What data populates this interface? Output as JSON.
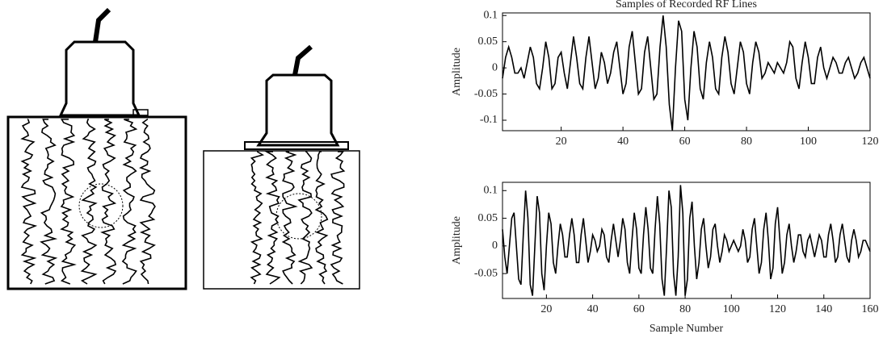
{
  "chart_data": [
    {
      "type": "line",
      "title": "Samples of Recorded RF Lines",
      "y_label": "Amplitude",
      "color": "#000000",
      "xlim": [
        1,
        120
      ],
      "xticks": [
        20,
        40,
        60,
        80,
        100,
        120
      ],
      "ylim": [
        -0.12,
        0.105
      ],
      "yticks": [
        -0.1,
        -0.05,
        0,
        0.05,
        0.1
      ],
      "x": [
        1,
        2,
        3,
        4,
        5,
        6,
        7,
        8,
        9,
        10,
        11,
        12,
        13,
        14,
        15,
        16,
        17,
        18,
        19,
        20,
        21,
        22,
        23,
        24,
        25,
        26,
        27,
        28,
        29,
        30,
        31,
        32,
        33,
        34,
        35,
        36,
        37,
        38,
        39,
        40,
        41,
        42,
        43,
        44,
        45,
        46,
        47,
        48,
        49,
        50,
        51,
        52,
        53,
        54,
        55,
        56,
        57,
        58,
        59,
        60,
        61,
        62,
        63,
        64,
        65,
        66,
        67,
        68,
        69,
        70,
        71,
        72,
        73,
        74,
        75,
        76,
        77,
        78,
        79,
        80,
        81,
        82,
        83,
        84,
        85,
        86,
        87,
        88,
        89,
        90,
        91,
        92,
        93,
        94,
        95,
        96,
        97,
        98,
        99,
        100,
        101,
        102,
        103,
        104,
        105,
        106,
        107,
        108,
        109,
        110,
        111,
        112,
        113,
        114,
        115,
        116,
        117,
        118,
        119,
        120
      ],
      "values": [
        -0.02,
        0.02,
        0.04,
        0.02,
        -0.01,
        -0.01,
        0.0,
        -0.02,
        0.01,
        0.04,
        0.02,
        -0.03,
        -0.04,
        0.0,
        0.05,
        0.02,
        -0.04,
        -0.03,
        0.02,
        0.03,
        -0.01,
        -0.04,
        0.01,
        0.06,
        0.02,
        -0.03,
        -0.04,
        0.02,
        0.06,
        0.01,
        -0.04,
        -0.02,
        0.03,
        0.01,
        -0.03,
        -0.01,
        0.03,
        0.05,
        0.0,
        -0.05,
        -0.03,
        0.04,
        0.07,
        0.01,
        -0.05,
        -0.04,
        0.03,
        0.06,
        0.0,
        -0.06,
        -0.05,
        0.04,
        0.1,
        0.04,
        -0.07,
        -0.12,
        0.0,
        0.09,
        0.07,
        -0.06,
        -0.1,
        0.0,
        0.07,
        0.04,
        -0.04,
        -0.06,
        0.01,
        0.05,
        0.02,
        -0.04,
        -0.05,
        0.02,
        0.06,
        0.03,
        -0.03,
        -0.05,
        0.0,
        0.05,
        0.03,
        -0.03,
        -0.05,
        0.01,
        0.05,
        0.03,
        -0.02,
        -0.01,
        0.01,
        0.0,
        -0.01,
        0.01,
        0.0,
        -0.01,
        0.01,
        0.05,
        0.04,
        -0.02,
        -0.04,
        0.01,
        0.05,
        0.02,
        -0.03,
        -0.03,
        0.02,
        0.04,
        0.0,
        -0.02,
        0.0,
        0.02,
        0.01,
        -0.01,
        -0.01,
        0.01,
        0.02,
        0.0,
        -0.02,
        -0.01,
        0.01,
        0.02,
        0.0,
        -0.02
      ]
    },
    {
      "type": "line",
      "x_label": "Sample Number",
      "y_label": "Amplitude",
      "color": "#000000",
      "xlim": [
        1,
        160
      ],
      "xticks": [
        20,
        40,
        60,
        80,
        100,
        120,
        140,
        160
      ],
      "ylim": [
        -0.095,
        0.115
      ],
      "yticks": [
        -0.05,
        0,
        0.05,
        0.1
      ],
      "x": [
        1,
        2,
        3,
        4,
        5,
        6,
        7,
        8,
        9,
        10,
        11,
        12,
        13,
        14,
        15,
        16,
        17,
        18,
        19,
        20,
        21,
        22,
        23,
        24,
        25,
        26,
        27,
        28,
        29,
        30,
        31,
        32,
        33,
        34,
        35,
        36,
        37,
        38,
        39,
        40,
        41,
        42,
        43,
        44,
        45,
        46,
        47,
        48,
        49,
        50,
        51,
        52,
        53,
        54,
        55,
        56,
        57,
        58,
        59,
        60,
        61,
        62,
        63,
        64,
        65,
        66,
        67,
        68,
        69,
        70,
        71,
        72,
        73,
        74,
        75,
        76,
        77,
        78,
        79,
        80,
        81,
        82,
        83,
        84,
        85,
        86,
        87,
        88,
        89,
        90,
        91,
        92,
        93,
        94,
        95,
        96,
        97,
        98,
        99,
        100,
        101,
        102,
        103,
        104,
        105,
        106,
        107,
        108,
        109,
        110,
        111,
        112,
        113,
        114,
        115,
        116,
        117,
        118,
        119,
        120,
        121,
        122,
        123,
        124,
        125,
        126,
        127,
        128,
        129,
        130,
        131,
        132,
        133,
        134,
        135,
        136,
        137,
        138,
        139,
        140,
        141,
        142,
        143,
        144,
        145,
        146,
        147,
        148,
        149,
        150,
        151,
        152,
        153,
        154,
        155,
        156,
        157,
        158,
        159,
        160
      ],
      "values": [
        0.03,
        -0.02,
        -0.05,
        0.0,
        0.05,
        0.06,
        0.0,
        -0.06,
        -0.07,
        0.02,
        0.1,
        0.05,
        -0.07,
        -0.09,
        0.0,
        0.09,
        0.06,
        -0.05,
        -0.08,
        0.0,
        0.06,
        0.04,
        -0.03,
        -0.05,
        0.0,
        0.04,
        0.02,
        -0.02,
        -0.02,
        0.02,
        0.05,
        0.02,
        -0.03,
        -0.03,
        0.02,
        0.05,
        0.01,
        -0.03,
        -0.01,
        0.02,
        0.01,
        -0.01,
        0.0,
        0.03,
        0.02,
        -0.02,
        -0.03,
        0.01,
        0.04,
        0.01,
        -0.02,
        0.01,
        0.05,
        0.03,
        -0.03,
        -0.05,
        0.01,
        0.06,
        0.03,
        -0.04,
        -0.05,
        0.02,
        0.07,
        0.03,
        -0.04,
        -0.05,
        0.03,
        0.09,
        0.04,
        -0.06,
        -0.09,
        0.0,
        0.1,
        0.07,
        -0.05,
        -0.09,
        -0.02,
        0.11,
        0.06,
        -0.09,
        -0.06,
        0.05,
        0.08,
        0.0,
        -0.06,
        -0.03,
        0.03,
        0.05,
        0.0,
        -0.04,
        -0.02,
        0.03,
        0.04,
        0.0,
        -0.03,
        -0.01,
        0.02,
        0.01,
        -0.01,
        0.0,
        0.01,
        0.0,
        -0.01,
        0.0,
        0.03,
        0.01,
        -0.03,
        -0.02,
        0.03,
        0.05,
        0.0,
        -0.05,
        -0.03,
        0.03,
        0.06,
        0.01,
        -0.06,
        -0.04,
        0.04,
        0.07,
        0.01,
        -0.05,
        -0.03,
        0.02,
        0.04,
        0.0,
        -0.03,
        -0.01,
        0.02,
        0.02,
        -0.01,
        -0.02,
        0.01,
        0.02,
        0.0,
        -0.02,
        0.0,
        0.02,
        0.01,
        -0.02,
        -0.02,
        0.02,
        0.04,
        0.01,
        -0.03,
        -0.02,
        0.02,
        0.04,
        0.01,
        -0.02,
        -0.03,
        0.01,
        0.03,
        0.01,
        -0.02,
        -0.01,
        0.01,
        0.01,
        0.0,
        -0.01
      ]
    }
  ]
}
